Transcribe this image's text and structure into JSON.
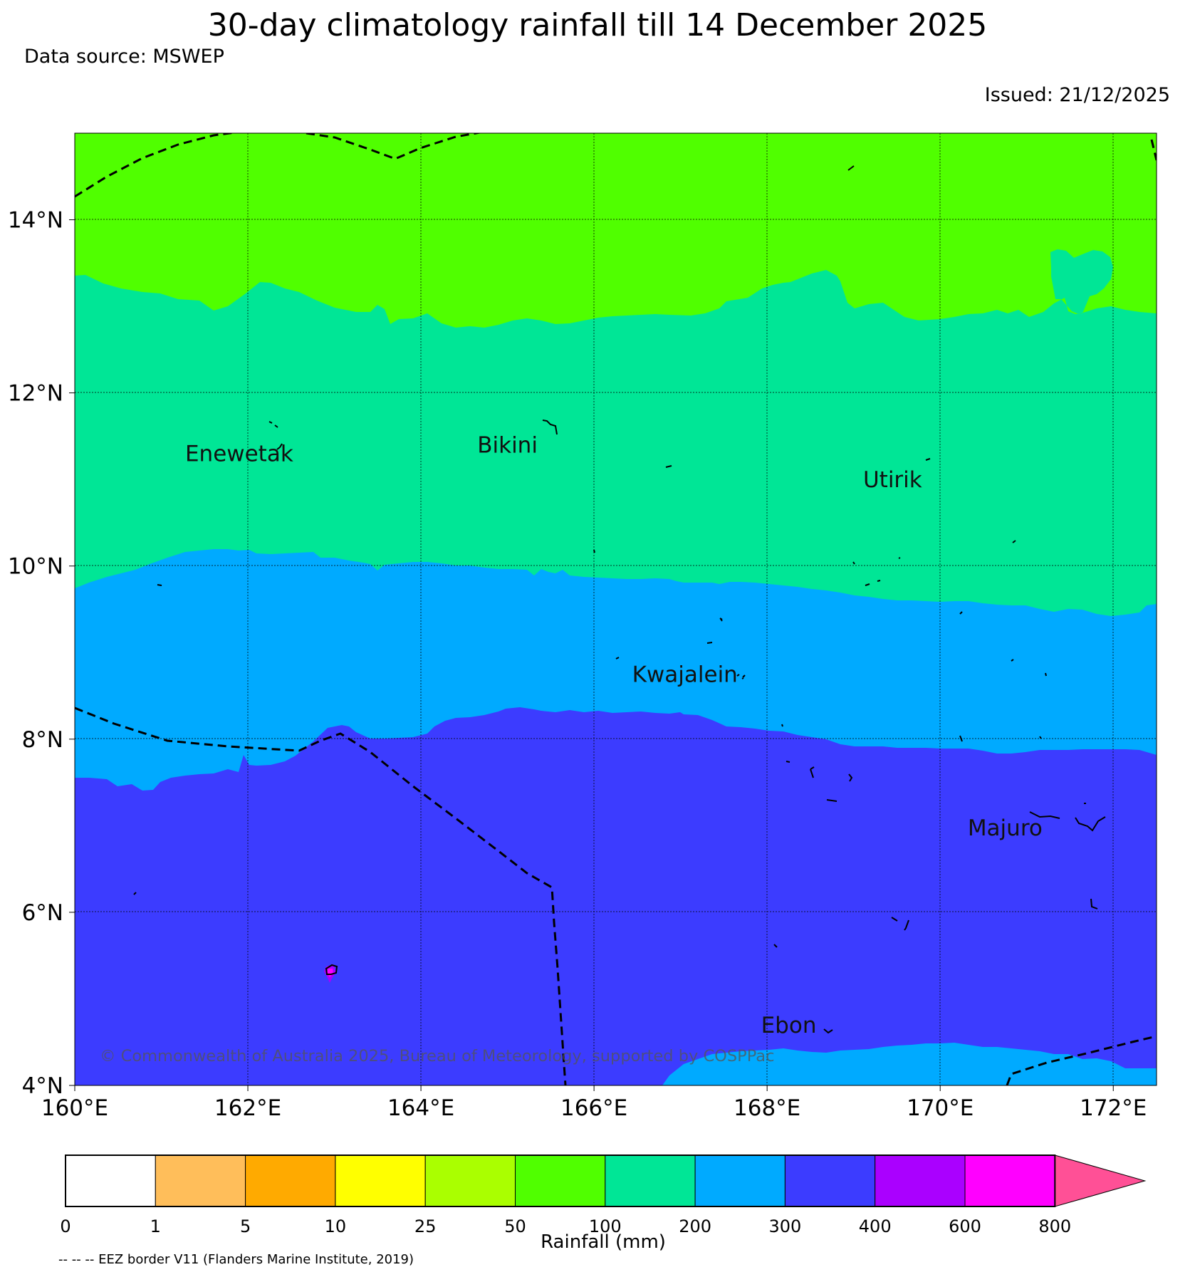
{
  "header": {
    "title": "30-day climatology rainfall till 14 December 2025",
    "source": "Data source: MSWEP",
    "issued": "Issued: 21/12/2025"
  },
  "map": {
    "lon_range": [
      160,
      172.5
    ],
    "lat_range": [
      4,
      15
    ],
    "lon_ticks": [
      {
        "lon": 160,
        "label": "160°E"
      },
      {
        "lon": 162,
        "label": "162°E"
      },
      {
        "lon": 164,
        "label": "164°E"
      },
      {
        "lon": 166,
        "label": "166°E"
      },
      {
        "lon": 168,
        "label": "168°E"
      },
      {
        "lon": 170,
        "label": "170°E"
      },
      {
        "lon": 172,
        "label": "172°E"
      }
    ],
    "lat_ticks": [
      {
        "lat": 4,
        "label": "4°N"
      },
      {
        "lat": 6,
        "label": "6°N"
      },
      {
        "lat": 8,
        "label": "8°N"
      },
      {
        "lat": 10,
        "label": "10°N"
      },
      {
        "lat": 12,
        "label": "12°N"
      },
      {
        "lat": 14,
        "label": "14°N"
      }
    ],
    "places": [
      {
        "name": "Enewetak",
        "lon": 161.9,
        "lat": 11.3
      },
      {
        "name": "Bikini",
        "lon": 165.0,
        "lat": 11.4
      },
      {
        "name": "Utirik",
        "lon": 169.45,
        "lat": 11.0
      },
      {
        "name": "Kwajalein",
        "lon": 167.05,
        "lat": 8.75
      },
      {
        "name": "Majuro",
        "lon": 170.75,
        "lat": 6.98
      },
      {
        "name": "Ebon",
        "lon": 168.25,
        "lat": 4.7
      }
    ],
    "copyright": "© Commonwealth of Australia 2025, Bureau of Meteorology, supported by COSPPac"
  },
  "colorbar": {
    "boundaries": [
      "0",
      "1",
      "5",
      "10",
      "25",
      "50",
      "100",
      "200",
      "300",
      "400",
      "600",
      "800"
    ],
    "colors": [
      "#ffffff",
      "#ffbe5a",
      "#ffaa00",
      "#ffff00",
      "#aaff00",
      "#50ff00",
      "#00e696",
      "#00aaff",
      "#3c3cff",
      "#aa00ff",
      "#ff00ff",
      "#ff5096"
    ],
    "label": "Rainfall (mm)"
  },
  "footnote": "-- -- -- EEZ border V11 (Flanders Marine Institute, 2019)"
}
